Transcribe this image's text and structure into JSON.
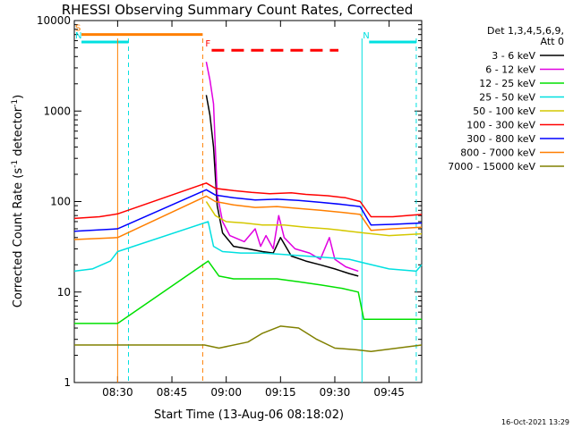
{
  "chart_data": {
    "type": "line",
    "title": "RHESSI Observing Summary Count Rates, Corrected",
    "xlabel": "Start Time (13-Aug-06 08:18:02)",
    "ylabel_main": "Corrected Count Rate (s",
    "ylabel_sup1": "-1",
    "ylabel_mid": " detector",
    "ylabel_sup2": "-1",
    "ylabel_end": ")",
    "y_scale": "log",
    "ylim": [
      1,
      10000
    ],
    "xlim": [
      "08:18:02",
      "09:54:00"
    ],
    "x_ticks": [
      "08:30",
      "08:45",
      "09:00",
      "09:15",
      "09:30",
      "09:45"
    ],
    "y_ticks": [
      "1",
      "10",
      "100",
      "1000",
      "10000"
    ],
    "legend_placement": "right",
    "legend_header": [
      "Det 1,3,4,5,6,9,",
      "Att 0"
    ],
    "timestamp": "16-Oct-2021 13:29",
    "flag_markers": [
      {
        "label": "S",
        "color": "#ff7f00",
        "start": "08:18:02",
        "end": "08:53:30",
        "level": 7000
      },
      {
        "label": "N",
        "color": "#00e0e0",
        "start": "08:18:02",
        "end": "08:33:00",
        "level": 5800
      },
      {
        "label": "N",
        "color": "#00e0e0",
        "start": "09:37:30",
        "end": "09:52:30",
        "level": 5800
      },
      {
        "label": "F",
        "color": "#ff0000",
        "start": "08:54:00",
        "end": "09:31:00",
        "level": 4700
      }
    ],
    "series": [
      {
        "name": "3 - 6 keV",
        "color": "#000000",
        "points": [
          [
            "08:54:30",
            1500
          ],
          [
            "08:55:30",
            900
          ],
          [
            "08:56:30",
            400
          ],
          [
            "08:57:30",
            90
          ],
          [
            "08:59:00",
            45
          ],
          [
            "09:02:00",
            32
          ],
          [
            "09:06:00",
            30
          ],
          [
            "09:10:00",
            28
          ],
          [
            "09:13:00",
            27
          ],
          [
            "09:15:00",
            40
          ],
          [
            "09:18:00",
            25
          ],
          [
            "09:22:00",
            22
          ],
          [
            "09:26:00",
            20
          ],
          [
            "09:30:00",
            18
          ],
          [
            "09:34:00",
            16
          ],
          [
            "09:36:30",
            15
          ]
        ]
      },
      {
        "name": "6 - 12 keV",
        "color": "#e000e0",
        "points": [
          [
            "08:54:30",
            3500
          ],
          [
            "08:55:30",
            2200
          ],
          [
            "08:56:30",
            1200
          ],
          [
            "08:57:30",
            120
          ],
          [
            "08:59:00",
            60
          ],
          [
            "09:01:00",
            42
          ],
          [
            "09:05:00",
            36
          ],
          [
            "09:08:00",
            50
          ],
          [
            "09:09:30",
            32
          ],
          [
            "09:11:00",
            42
          ],
          [
            "09:13:00",
            30
          ],
          [
            "09:14:30",
            70
          ],
          [
            "09:16:00",
            40
          ],
          [
            "09:19:00",
            30
          ],
          [
            "09:23:00",
            27
          ],
          [
            "09:26:00",
            23
          ],
          [
            "09:28:30",
            40
          ],
          [
            "09:30:00",
            23
          ],
          [
            "09:33:00",
            19
          ],
          [
            "09:36:30",
            17
          ]
        ]
      },
      {
        "name": "12 - 25 keV",
        "color": "#00e000",
        "points": [
          [
            "08:18:02",
            4.5
          ],
          [
            "08:30:00",
            4.5
          ],
          [
            "08:55:00",
            22
          ],
          [
            "08:58:00",
            15
          ],
          [
            "09:02:00",
            14
          ],
          [
            "09:08:00",
            14
          ],
          [
            "09:14:00",
            14
          ],
          [
            "09:20:00",
            13
          ],
          [
            "09:26:00",
            12
          ],
          [
            "09:32:00",
            11
          ],
          [
            "09:36:30",
            10
          ],
          [
            "09:38:00",
            5
          ],
          [
            "09:54:00",
            5
          ]
        ]
      },
      {
        "name": "25 - 50 keV",
        "color": "#00e0e0",
        "points": [
          [
            "08:18:02",
            17
          ],
          [
            "08:23:00",
            18
          ],
          [
            "08:28:00",
            22
          ],
          [
            "08:30:00",
            28
          ],
          [
            "08:55:00",
            60
          ],
          [
            "08:56:30",
            32
          ],
          [
            "08:59:00",
            28
          ],
          [
            "09:04:00",
            27
          ],
          [
            "09:10:00",
            27
          ],
          [
            "09:16:00",
            26
          ],
          [
            "09:22:00",
            25
          ],
          [
            "09:28:00",
            24
          ],
          [
            "09:34:00",
            23
          ],
          [
            "09:38:00",
            21
          ],
          [
            "09:45:00",
            18
          ],
          [
            "09:52:30",
            17
          ],
          [
            "09:54:00",
            20
          ]
        ]
      },
      {
        "name": "50 - 100 keV",
        "color": "#d4c800",
        "points": [
          [
            "08:54:30",
            100
          ],
          [
            "08:57:00",
            70
          ],
          [
            "09:00:00",
            60
          ],
          [
            "09:05:00",
            58
          ],
          [
            "09:10:00",
            55
          ],
          [
            "09:16:00",
            55
          ],
          [
            "09:22:00",
            52
          ],
          [
            "09:28:00",
            50
          ],
          [
            "09:34:00",
            47
          ],
          [
            "09:38:00",
            45
          ],
          [
            "09:45:00",
            42
          ],
          [
            "09:54:00",
            44
          ]
        ]
      },
      {
        "name": "100 - 300 keV",
        "color": "#ff0000",
        "points": [
          [
            "08:18:02",
            65
          ],
          [
            "08:25:00",
            68
          ],
          [
            "08:30:00",
            73
          ],
          [
            "08:54:30",
            160
          ],
          [
            "08:57:00",
            140
          ],
          [
            "09:02:00",
            132
          ],
          [
            "09:07:00",
            126
          ],
          [
            "09:12:00",
            122
          ],
          [
            "09:18:00",
            125
          ],
          [
            "09:22:00",
            120
          ],
          [
            "09:28:00",
            116
          ],
          [
            "09:33:00",
            110
          ],
          [
            "09:37:00",
            100
          ],
          [
            "09:40:00",
            68
          ],
          [
            "09:46:00",
            68
          ],
          [
            "09:54:00",
            72
          ]
        ]
      },
      {
        "name": "300 - 800 keV",
        "color": "#0000ff",
        "points": [
          [
            "08:18:02",
            47
          ],
          [
            "08:30:00",
            50
          ],
          [
            "08:54:30",
            135
          ],
          [
            "08:57:00",
            118
          ],
          [
            "09:02:00",
            110
          ],
          [
            "09:08:00",
            104
          ],
          [
            "09:14:00",
            106
          ],
          [
            "09:20:00",
            103
          ],
          [
            "09:26:00",
            98
          ],
          [
            "09:32:00",
            93
          ],
          [
            "09:37:00",
            88
          ],
          [
            "09:40:00",
            55
          ],
          [
            "09:46:00",
            56
          ],
          [
            "09:54:00",
            58
          ]
        ]
      },
      {
        "name": "800 - 7000 keV",
        "color": "#ff7f00",
        "points": [
          [
            "08:18:02",
            38
          ],
          [
            "08:30:00",
            40
          ],
          [
            "08:54:30",
            115
          ],
          [
            "08:57:00",
            100
          ],
          [
            "09:02:00",
            92
          ],
          [
            "09:08:00",
            86
          ],
          [
            "09:14:00",
            88
          ],
          [
            "09:20:00",
            84
          ],
          [
            "09:26:00",
            80
          ],
          [
            "09:32:00",
            76
          ],
          [
            "09:37:00",
            72
          ],
          [
            "09:40:00",
            48
          ],
          [
            "09:46:00",
            50
          ],
          [
            "09:54:00",
            52
          ]
        ]
      },
      {
        "name": "7000 - 15000 keV",
        "color": "#808000",
        "points": [
          [
            "08:18:02",
            2.6
          ],
          [
            "08:30:00",
            2.6
          ],
          [
            "08:54:00",
            2.6
          ],
          [
            "08:58:00",
            2.4
          ],
          [
            "09:06:00",
            2.8
          ],
          [
            "09:10:00",
            3.5
          ],
          [
            "09:15:00",
            4.2
          ],
          [
            "09:20:00",
            4
          ],
          [
            "09:25:00",
            3
          ],
          [
            "09:30:00",
            2.4
          ],
          [
            "09:36:00",
            2.3
          ],
          [
            "09:40:00",
            2.2
          ],
          [
            "09:54:00",
            2.6
          ]
        ]
      }
    ]
  }
}
